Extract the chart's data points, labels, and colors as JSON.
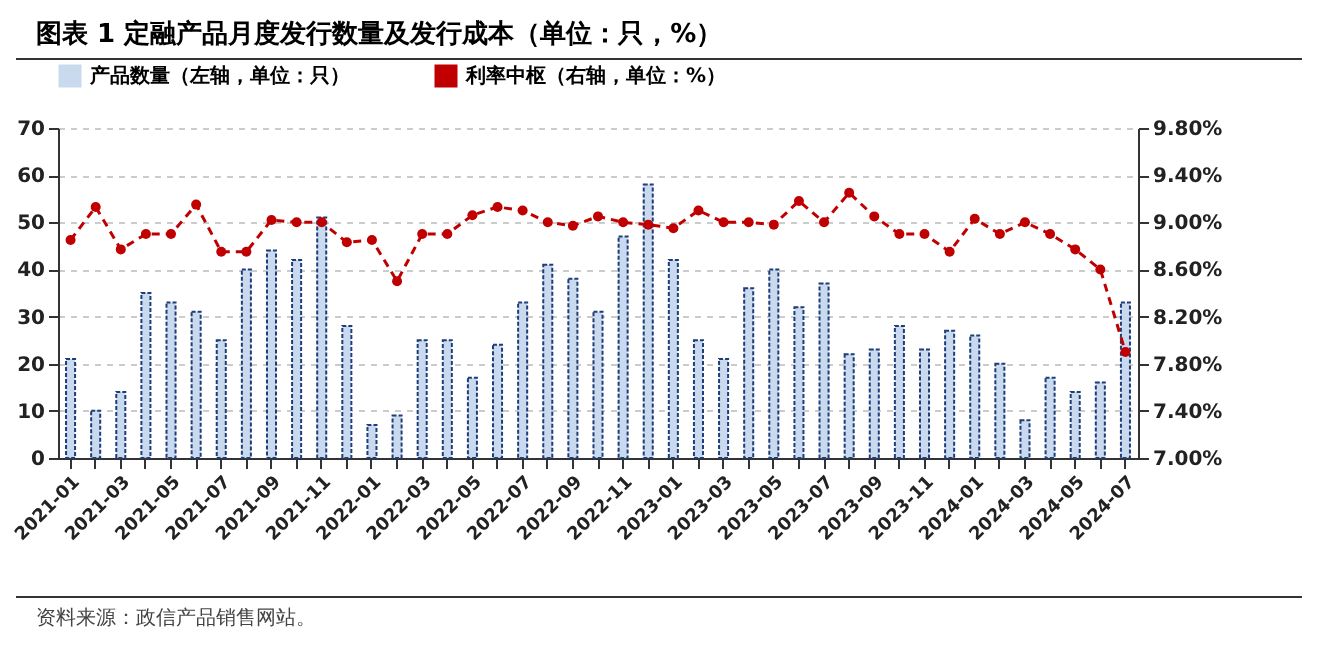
{
  "chart_data": {
    "type": "bar",
    "title": "图表 1 定融产品月度发行数量及发行成本（单位：只，%）",
    "annotations": [
      "资料来源：政信产品销售网站。"
    ],
    "categories": [
      "2021-01",
      null,
      "2021-03",
      null,
      "2021-05",
      null,
      "2021-07",
      null,
      "2021-09",
      null,
      "2021-11",
      null,
      "2022-01",
      null,
      "2022-03",
      null,
      "2022-05",
      null,
      "2022-07",
      null,
      "2022-09",
      null,
      "2022-11",
      null,
      "2023-01",
      null,
      "2023-03",
      null,
      "2023-05",
      null,
      "2023-07",
      null,
      "2023-09",
      null,
      "2023-11",
      null,
      "2024-01",
      null,
      "2024-03",
      null,
      "2024-05",
      null,
      "2024-07"
    ],
    "series": [
      {
        "name": "产品数量（左轴，单位：只）",
        "color": "#c9d9ee",
        "values": [
          21,
          10,
          14,
          35,
          33,
          31,
          25,
          40,
          44,
          42,
          51,
          28,
          7,
          9,
          25,
          25,
          17,
          24,
          33,
          41,
          38,
          31,
          47,
          58,
          42,
          25,
          21,
          36,
          40,
          32,
          37,
          22,
          23,
          28,
          23,
          27,
          26,
          20,
          8,
          17,
          14,
          16,
          33
        ]
      },
      {
        "name": "利率中枢（右轴，单位：%）",
        "type": "line",
        "axis": "y2",
        "color": "#c00000",
        "line_style": "dashed",
        "marker": "circle",
        "values": [
          8.85,
          9.13,
          8.77,
          8.9,
          8.9,
          9.15,
          8.75,
          8.75,
          9.02,
          9.0,
          9.0,
          8.83,
          8.85,
          8.5,
          8.9,
          8.9,
          9.06,
          9.13,
          9.1,
          9.0,
          8.97,
          9.05,
          9.0,
          8.98,
          8.95,
          9.1,
          9.0,
          9.0,
          8.98,
          9.18,
          9.0,
          9.25,
          9.05,
          8.9,
          8.9,
          8.75,
          9.03,
          8.9,
          9.0,
          8.9,
          8.77,
          8.6,
          7.9
        ]
      }
    ],
    "ylim": [
      0,
      70
    ],
    "yticks": [
      0,
      10,
      20,
      30,
      40,
      50,
      60,
      70
    ],
    "y2lim": [
      7,
      9.8
    ],
    "y2ticks": [
      {
        "value": 7,
        "label": "7.00%"
      },
      {
        "value": 7.4,
        "label": "7.40%"
      },
      {
        "value": 7.8,
        "label": "7.80%"
      },
      {
        "value": 8.2,
        "label": "8.20%"
      },
      {
        "value": 8.6,
        "label": "8.60%"
      },
      {
        "value": 9.0,
        "label": "9.00%"
      },
      {
        "value": 9.4,
        "label": "9.40%"
      },
      {
        "value": 9.8,
        "label": "9.80%"
      }
    ],
    "grid": "y",
    "legend": "top"
  }
}
